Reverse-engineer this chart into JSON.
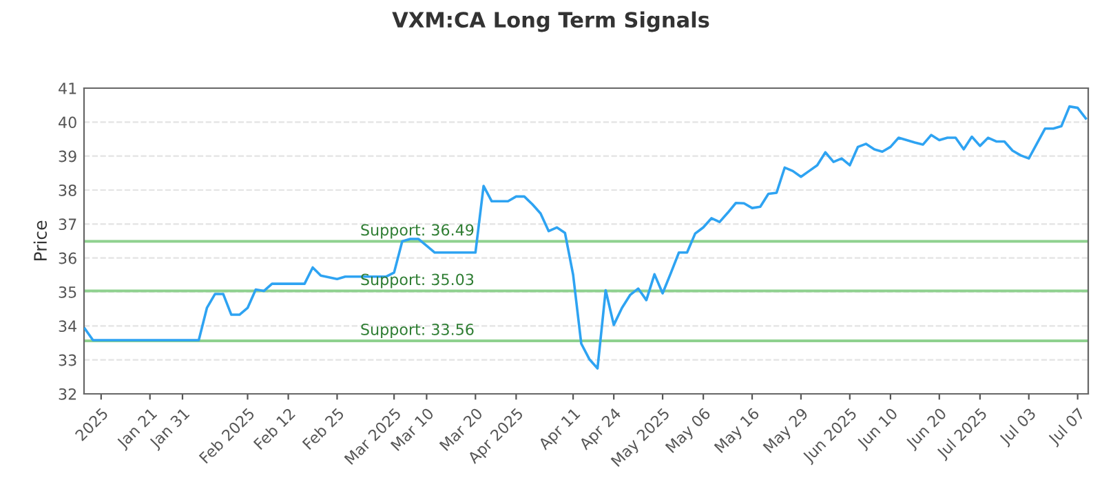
{
  "chart_data": {
    "type": "line",
    "title": "VXM:CA Long Term Signals",
    "ylabel": "Price",
    "categories": [
      null,
      null,
      "2025",
      null,
      null,
      null,
      null,
      null,
      "Jan 21",
      null,
      null,
      null,
      "Jan 31",
      null,
      null,
      null,
      null,
      null,
      null,
      null,
      "Feb 2025",
      null,
      null,
      null,
      null,
      "Feb 12",
      null,
      null,
      null,
      null,
      null,
      "Feb 25",
      null,
      null,
      null,
      null,
      null,
      null,
      "Mar 2025",
      null,
      null,
      null,
      "Mar 10",
      null,
      null,
      null,
      null,
      null,
      "Mar 20",
      null,
      null,
      null,
      null,
      "Apr 2025",
      null,
      null,
      null,
      null,
      null,
      null,
      "Apr 11",
      null,
      null,
      null,
      null,
      "Apr 24",
      null,
      null,
      null,
      null,
      null,
      "May 2025",
      null,
      null,
      null,
      null,
      "May 06",
      null,
      null,
      null,
      null,
      null,
      "May 16",
      null,
      null,
      null,
      null,
      null,
      "May 29",
      null,
      null,
      null,
      null,
      null,
      "Jun 2025",
      null,
      null,
      null,
      null,
      "Jun 10",
      null,
      null,
      null,
      null,
      null,
      "Jun 20",
      null,
      null,
      null,
      null,
      "Jul 2025",
      null,
      null,
      null,
      null,
      null,
      "Jul 03",
      null,
      null,
      null,
      null,
      null,
      "Jul 07",
      null
    ],
    "series": [
      {
        "color": "#2ea3f2",
        "values": [
          33.92,
          33.58,
          33.58,
          33.58,
          33.58,
          33.58,
          33.58,
          33.58,
          33.58,
          33.58,
          33.58,
          33.58,
          33.58,
          33.58,
          33.58,
          34.53,
          34.94,
          34.94,
          34.33,
          34.33,
          34.53,
          35.07,
          35.03,
          35.24,
          35.24,
          35.24,
          35.24,
          35.24,
          35.72,
          35.48,
          35.43,
          35.38,
          35.45,
          35.45,
          35.45,
          35.45,
          35.45,
          35.45,
          35.57,
          36.49,
          36.56,
          36.56,
          36.36,
          36.16,
          36.16,
          36.16,
          36.16,
          36.16,
          36.16,
          38.12,
          37.67,
          37.67,
          37.67,
          37.81,
          37.81,
          37.58,
          37.31,
          36.79,
          36.9,
          36.74,
          35.51,
          33.48,
          33.02,
          32.75,
          35.05,
          34.03,
          34.53,
          34.91,
          35.1,
          34.76,
          35.52,
          34.96,
          35.55,
          36.16,
          36.16,
          36.72,
          36.9,
          37.17,
          37.06,
          37.33,
          37.62,
          37.61,
          37.47,
          37.51,
          37.89,
          37.92,
          38.66,
          38.56,
          38.39,
          38.56,
          38.73,
          39.11,
          38.83,
          38.93,
          38.73,
          39.27,
          39.36,
          39.2,
          39.13,
          39.27,
          39.54,
          39.47,
          39.4,
          39.34,
          39.62,
          39.47,
          39.54,
          39.54,
          39.2,
          39.57,
          39.3,
          39.54,
          39.43,
          39.43,
          39.16,
          39.02,
          38.93,
          39.37,
          39.81,
          39.81,
          39.88,
          40.46,
          40.42,
          40.11
        ]
      }
    ],
    "ylim": [
      32,
      41
    ],
    "yticks": [
      32,
      33,
      34,
      35,
      36,
      37,
      38,
      39,
      40,
      41
    ],
    "grid": "y",
    "marker": "none",
    "line_style": "solid",
    "ref_lines": [
      {
        "axis": "y",
        "value": 36.49,
        "label": "Support: 36.49",
        "color": "#8fd18f"
      },
      {
        "axis": "y",
        "value": 35.03,
        "label": "Support: 35.03",
        "color": "#8fd18f"
      },
      {
        "axis": "y",
        "value": 33.56,
        "label": "Support: 33.56",
        "color": "#8fd18f"
      }
    ]
  }
}
